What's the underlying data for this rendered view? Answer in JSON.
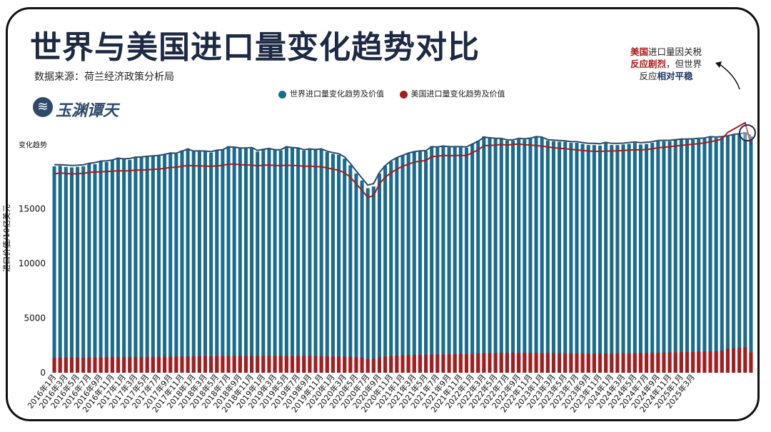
{
  "title": "世界与美国进口量变化趋势对比",
  "source": "数据来源：荷兰经济政策分析局",
  "logo": {
    "text": "玉渊谭天",
    "icon": "wave-logo-icon"
  },
  "legend": {
    "world": "世界进口量变化趋势及价值",
    "us": "美国进口量变化趋势及价值"
  },
  "annotation": {
    "part1": "美国",
    "part2": "进口量因关税",
    "part3": "反应剧烈",
    "part4": "，但世界",
    "part5": "反应",
    "part6": "相对平稳"
  },
  "trend_label": "变化趋势",
  "colors": {
    "world": "#1a6b8c",
    "us": "#a51d1d",
    "title": "#1d2a44",
    "trend_world": "#2e4a6b",
    "trend_us": "#a51d1d"
  },
  "chart_data": {
    "type": "bar",
    "ylabel": "进口价值/10亿美元",
    "ylim": [
      0,
      20000
    ],
    "yticks": [
      0,
      5000,
      10000,
      15000
    ],
    "xticks": [
      "2016年1月",
      "2016年3月",
      "2016年5月",
      "2016年7月",
      "2016年9月",
      "2016年11月",
      "2017年1月",
      "2017年3月",
      "2017年5月",
      "2017年7月",
      "2017年9月",
      "2017年11月",
      "2018年1月",
      "2018年3月",
      "2018年5月",
      "2018年7月",
      "2018年9月",
      "2018年11月",
      "2019年1月",
      "2019年3月",
      "2019年5月",
      "2019年7月",
      "2019年9月",
      "2019年11月",
      "2020年1月",
      "2020年3月",
      "2020年5月",
      "2020年7月",
      "2020年9月",
      "2020年11月",
      "2021年1月",
      "2021年3月",
      "2021年5月",
      "2021年7月",
      "2021年9月",
      "2021年11月",
      "2022年1月",
      "2022年3月",
      "2022年5月",
      "2022年7月",
      "2022年9月",
      "2022年11月",
      "2023年1月",
      "2023年3月",
      "2023年5月",
      "2023年7月",
      "2023年9月",
      "2023年11月",
      "2024年1月",
      "2024年3月",
      "2024年5月",
      "2024年7月",
      "2024年9月",
      "2024年11月",
      "2025年1月",
      "2025年3月"
    ],
    "series": [
      {
        "name": "世界进口量变化趋势及价值",
        "values": [
          18900,
          18950,
          18850,
          18800,
          18850,
          18900,
          19150,
          19100,
          19350,
          19300,
          19450,
          19700,
          19550,
          19500,
          19700,
          19750,
          19800,
          19850,
          19850,
          20000,
          20150,
          20050,
          20350,
          20550,
          20250,
          20250,
          20250,
          20150,
          20400,
          20400,
          20750,
          20700,
          20550,
          20550,
          20650,
          20250,
          20450,
          20550,
          20400,
          20350,
          20750,
          20650,
          20550,
          20350,
          20500,
          20400,
          20500,
          20200,
          20050,
          19950,
          19600,
          19000,
          18250,
          17600,
          16900,
          17050,
          18250,
          18950,
          19350,
          19700,
          19900,
          20100,
          20250,
          20300,
          20300,
          20750,
          20650,
          20750,
          20650,
          20650,
          20650,
          20600,
          20950,
          21250,
          21650,
          21550,
          21450,
          21450,
          21250,
          21250,
          21450,
          21350,
          21450,
          21650,
          21550,
          21250,
          21200,
          21150,
          21150,
          21050,
          21050,
          20950,
          20850,
          20850,
          20800,
          21050,
          20850,
          20850,
          20900,
          20950,
          21050,
          20900,
          20950,
          21050,
          21200,
          21200,
          21200,
          21300,
          21350,
          21350,
          21350,
          21400,
          21450,
          21600,
          21500,
          21550,
          21650,
          21800,
          21850,
          22000,
          21650
        ]
      },
      {
        "name": "美国进口量变化趋势及价值",
        "values": [
          1380,
          1400,
          1390,
          1385,
          1390,
          1395,
          1400,
          1405,
          1410,
          1420,
          1425,
          1430,
          1435,
          1440,
          1445,
          1450,
          1455,
          1460,
          1465,
          1475,
          1485,
          1490,
          1500,
          1510,
          1510,
          1520,
          1520,
          1520,
          1525,
          1530,
          1540,
          1545,
          1545,
          1550,
          1550,
          1545,
          1550,
          1555,
          1550,
          1545,
          1550,
          1545,
          1540,
          1545,
          1540,
          1530,
          1520,
          1510,
          1500,
          1495,
          1480,
          1470,
          1450,
          1400,
          1250,
          1270,
          1400,
          1480,
          1530,
          1570,
          1600,
          1620,
          1640,
          1650,
          1650,
          1670,
          1680,
          1690,
          1690,
          1700,
          1710,
          1700,
          1720,
          1760,
          1800,
          1800,
          1810,
          1820,
          1820,
          1830,
          1820,
          1810,
          1810,
          1800,
          1790,
          1790,
          1780,
          1770,
          1770,
          1770,
          1760,
          1760,
          1750,
          1750,
          1750,
          1760,
          1770,
          1770,
          1780,
          1780,
          1790,
          1800,
          1810,
          1820,
          1830,
          1840,
          1860,
          1870,
          1880,
          1900,
          1910,
          1930,
          1950,
          1960,
          1980,
          2020,
          2200,
          2230,
          2280,
          2350,
          1850
        ]
      }
    ],
    "trend_lines": [
      {
        "name": "世界进口量变化趋势",
        "values": [
          19040,
          19050,
          19020,
          18980,
          19000,
          19040,
          19180,
          19240,
          19380,
          19400,
          19480,
          19640,
          19580,
          19620,
          19740,
          19760,
          19820,
          19860,
          19900,
          20000,
          20120,
          20100,
          20300,
          20460,
          20300,
          20320,
          20300,
          20240,
          20380,
          20420,
          20680,
          20660,
          20580,
          20580,
          20620,
          20360,
          20460,
          20540,
          20420,
          20420,
          20680,
          20620,
          20580,
          20420,
          20500,
          20440,
          20500,
          20280,
          20160,
          20060,
          19760,
          19160,
          18480,
          17820,
          17180,
          17320,
          18340,
          18960,
          19400,
          19700,
          19900,
          20120,
          20240,
          20320,
          20340,
          20700,
          20680,
          20760,
          20700,
          20700,
          20700,
          20680,
          20940,
          21200,
          21560,
          21520,
          21460,
          21460,
          21320,
          21320,
          21460,
          21420,
          21480,
          21620,
          21580,
          21340,
          21300,
          21260,
          21240,
          21160,
          21160,
          21080,
          21000,
          21000,
          20960,
          21100,
          21000,
          21000,
          21020,
          21080,
          21140,
          21060,
          21100,
          21160,
          21260,
          21280,
          21280,
          21340,
          21400,
          21400,
          21420,
          21460,
          21500,
          21620,
          21580,
          21620,
          21700,
          21820,
          21880,
          21980,
          21700
        ]
      },
      {
        "name": "美国进口量变化趋势",
        "values": [
          18200,
          18300,
          18250,
          18200,
          18230,
          18250,
          18350,
          18380,
          18400,
          18420,
          18450,
          18500,
          18480,
          18500,
          18550,
          18560,
          18580,
          18620,
          18650,
          18720,
          18800,
          18820,
          18900,
          18980,
          18950,
          18950,
          18920,
          18900,
          18950,
          18980,
          19100,
          19100,
          19050,
          19020,
          19020,
          18950,
          19000,
          19020,
          18980,
          18960,
          19000,
          18980,
          18960,
          18900,
          18920,
          18880,
          18860,
          18760,
          18640,
          18540,
          18300,
          17900,
          17300,
          16700,
          16050,
          16220,
          17300,
          17900,
          18300,
          18650,
          18900,
          19100,
          19280,
          19380,
          19420,
          19800,
          19820,
          19900,
          19870,
          19890,
          19900,
          19880,
          20150,
          20400,
          20800,
          20800,
          20850,
          20900,
          20850,
          20900,
          20950,
          20880,
          20850,
          20800,
          20750,
          20680,
          20600,
          20560,
          20520,
          20460,
          20400,
          20350,
          20300,
          20280,
          20260,
          20300,
          20300,
          20320,
          20350,
          20380,
          20420,
          20400,
          20450,
          20500,
          20600,
          20650,
          20700,
          20760,
          20820,
          20880,
          20920,
          20980,
          21050,
          21150,
          21250,
          21400,
          22000,
          22300,
          22600,
          22900,
          20900
        ]
      }
    ],
    "annotations": [
      "美国进口量因关税反应剧烈，但世界反应相对平稳"
    ]
  }
}
